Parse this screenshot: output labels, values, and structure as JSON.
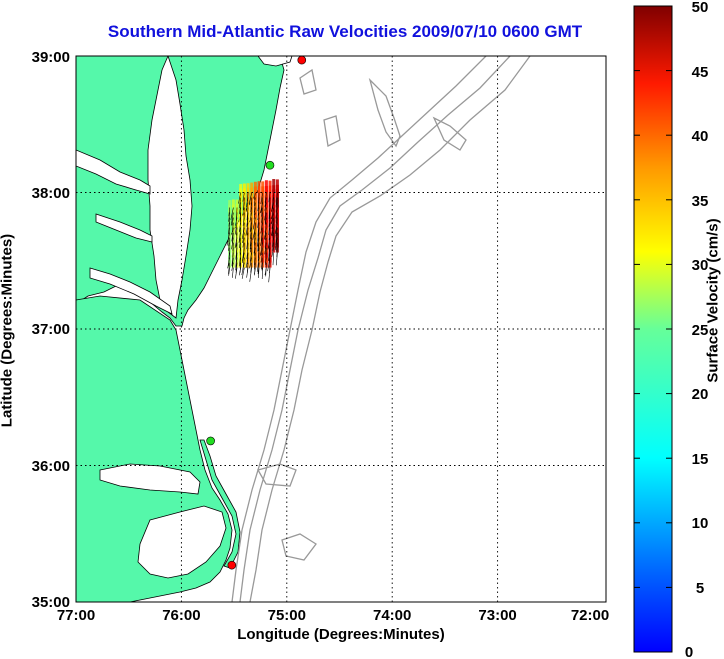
{
  "title": "Southern Mid-Atlantic Raw Velocities 2009/07/10 0600 GMT",
  "x_axis": {
    "label": "Longitude (Degrees:Minutes)",
    "ticks": [
      "77:00",
      "76:00",
      "75:00",
      "74:00",
      "73:00",
      "72:00"
    ]
  },
  "y_axis": {
    "label": "Latitude (Degrees:Minutes)",
    "ticks": [
      "39:00",
      "38:00",
      "37:00",
      "36:00",
      "35:00"
    ]
  },
  "colorbar": {
    "label": "Surface Velocity (cm/s)",
    "ticks": [
      "50",
      "45",
      "40",
      "35",
      "30",
      "25",
      "20",
      "15",
      "10",
      "5",
      "0"
    ],
    "range": [
      0,
      50
    ],
    "colormap": "jet"
  },
  "map": {
    "lon_range": [
      -77,
      -72
    ],
    "lat_range": [
      35,
      39
    ],
    "land_color": "#55f8aa",
    "water_color": "#ffffff",
    "bathymetry_color": "#999999",
    "gridlines": "dotted",
    "stations": [
      {
        "lon": -74.87,
        "lat": 38.97,
        "color": "#ff0000"
      },
      {
        "lon": -75.17,
        "lat": 38.2,
        "color": "#22dd22"
      },
      {
        "lon": -75.73,
        "lat": 36.18,
        "color": "#22dd22"
      },
      {
        "lon": -75.53,
        "lat": 35.27,
        "color": "#ff0000"
      }
    ],
    "vector_patch": {
      "lon_range": [
        -75.55,
        -75.1
      ],
      "lat_range": [
        37.45,
        38.0
      ],
      "speed_range_cm_s": [
        15,
        50
      ]
    }
  }
}
